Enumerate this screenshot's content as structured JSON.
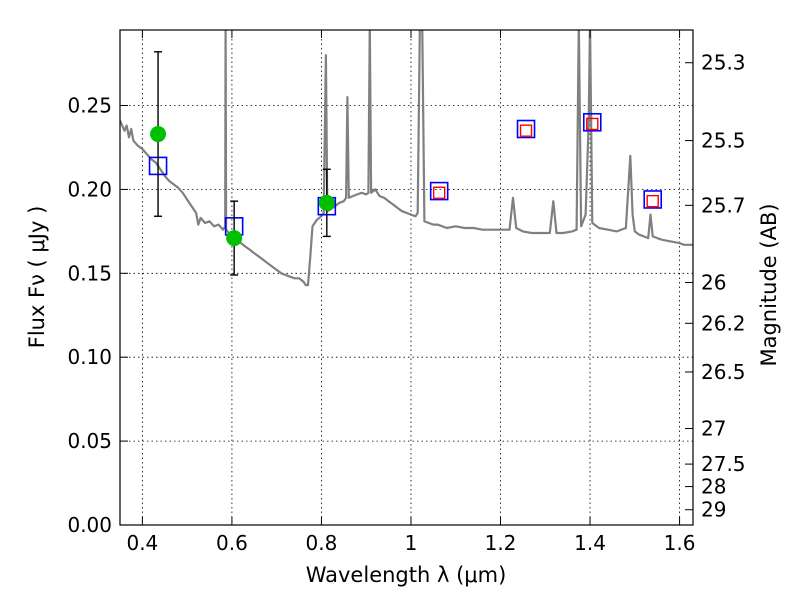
{
  "chart_data": {
    "type": "scatter",
    "xlabel": "Wavelength  λ (μm)",
    "ylabel": "Flux  Fν  ( μJy )",
    "ylabel_right": "Magnitude (AB)",
    "xlim": [
      0.35,
      1.63
    ],
    "ylim": [
      0.0,
      0.295
    ],
    "grid": true,
    "x_ticks": [
      {
        "value": 0.4,
        "label": "0.4"
      },
      {
        "value": 0.6,
        "label": "0.6"
      },
      {
        "value": 0.8,
        "label": "0.8"
      },
      {
        "value": 1.0,
        "label": "1"
      },
      {
        "value": 1.2,
        "label": "1.2"
      },
      {
        "value": 1.4,
        "label": "1.4"
      },
      {
        "value": 1.6,
        "label": "1.6"
      }
    ],
    "y_ticks": [
      {
        "value": 0.0,
        "label": "0.00"
      },
      {
        "value": 0.05,
        "label": "0.05"
      },
      {
        "value": 0.1,
        "label": "0.10"
      },
      {
        "value": 0.15,
        "label": "0.15"
      },
      {
        "value": 0.2,
        "label": "0.20"
      },
      {
        "value": 0.25,
        "label": "0.25"
      }
    ],
    "right_ticks": [
      {
        "label": "25.3",
        "flux": 0.2755
      },
      {
        "label": "25.5",
        "flux": 0.2291
      },
      {
        "label": "25.7",
        "flux": 0.1905
      },
      {
        "label": "26",
        "flux": 0.1445
      },
      {
        "label": "26.2",
        "flux": 0.1202
      },
      {
        "label": "26.5",
        "flux": 0.0912
      },
      {
        "label": "27",
        "flux": 0.0575
      },
      {
        "label": "27.5",
        "flux": 0.0363
      },
      {
        "label": "28",
        "flux": 0.0229
      },
      {
        "label": "29",
        "flux": 0.0091
      }
    ],
    "spectrum": {
      "color": "#808080",
      "points": [
        [
          0.35,
          0.241
        ],
        [
          0.36,
          0.235
        ],
        [
          0.365,
          0.238
        ],
        [
          0.37,
          0.231
        ],
        [
          0.375,
          0.236
        ],
        [
          0.38,
          0.229
        ],
        [
          0.39,
          0.226
        ],
        [
          0.4,
          0.224
        ],
        [
          0.41,
          0.221
        ],
        [
          0.42,
          0.218
        ],
        [
          0.43,
          0.216
        ],
        [
          0.44,
          0.212
        ],
        [
          0.45,
          0.208
        ],
        [
          0.46,
          0.205
        ],
        [
          0.47,
          0.203
        ],
        [
          0.48,
          0.201
        ],
        [
          0.49,
          0.198
        ],
        [
          0.5,
          0.194
        ],
        [
          0.51,
          0.19
        ],
        [
          0.52,
          0.186
        ],
        [
          0.525,
          0.179
        ],
        [
          0.53,
          0.183
        ],
        [
          0.54,
          0.18
        ],
        [
          0.55,
          0.181
        ],
        [
          0.56,
          0.178
        ],
        [
          0.57,
          0.179
        ],
        [
          0.58,
          0.176
        ],
        [
          0.585,
          0.178
        ],
        [
          0.586,
          0.3
        ],
        [
          0.587,
          0.176
        ],
        [
          0.59,
          0.175
        ],
        [
          0.6,
          0.172
        ],
        [
          0.61,
          0.17
        ],
        [
          0.62,
          0.168
        ],
        [
          0.63,
          0.166
        ],
        [
          0.64,
          0.164
        ],
        [
          0.65,
          0.162
        ],
        [
          0.66,
          0.16
        ],
        [
          0.67,
          0.158
        ],
        [
          0.68,
          0.156
        ],
        [
          0.69,
          0.154
        ],
        [
          0.7,
          0.152
        ],
        [
          0.71,
          0.15
        ],
        [
          0.72,
          0.149
        ],
        [
          0.73,
          0.148
        ],
        [
          0.74,
          0.147
        ],
        [
          0.75,
          0.147
        ],
        [
          0.76,
          0.145
        ],
        [
          0.765,
          0.143
        ],
        [
          0.77,
          0.143
        ],
        [
          0.775,
          0.16
        ],
        [
          0.78,
          0.178
        ],
        [
          0.79,
          0.182
        ],
        [
          0.8,
          0.184
        ],
        [
          0.805,
          0.186
        ],
        [
          0.81,
          0.28
        ],
        [
          0.813,
          0.187
        ],
        [
          0.82,
          0.188
        ],
        [
          0.83,
          0.19
        ],
        [
          0.84,
          0.192
        ],
        [
          0.85,
          0.193
        ],
        [
          0.855,
          0.195
        ],
        [
          0.858,
          0.255
        ],
        [
          0.861,
          0.195
        ],
        [
          0.87,
          0.196
        ],
        [
          0.88,
          0.197
        ],
        [
          0.89,
          0.198
        ],
        [
          0.9,
          0.197
        ],
        [
          0.905,
          0.198
        ],
        [
          0.908,
          0.3
        ],
        [
          0.911,
          0.198
        ],
        [
          0.92,
          0.2
        ],
        [
          0.93,
          0.196
        ],
        [
          0.94,
          0.195
        ],
        [
          0.95,
          0.193
        ],
        [
          0.96,
          0.191
        ],
        [
          0.97,
          0.189
        ],
        [
          0.98,
          0.187
        ],
        [
          0.99,
          0.186
        ],
        [
          1.0,
          0.185
        ],
        [
          1.01,
          0.184
        ],
        [
          1.015,
          0.186
        ],
        [
          1.02,
          0.3
        ],
        [
          1.025,
          0.3
        ],
        [
          1.03,
          0.181
        ],
        [
          1.04,
          0.18
        ],
        [
          1.05,
          0.179
        ],
        [
          1.06,
          0.179
        ],
        [
          1.07,
          0.178
        ],
        [
          1.08,
          0.177
        ],
        [
          1.1,
          0.178
        ],
        [
          1.12,
          0.177
        ],
        [
          1.14,
          0.177
        ],
        [
          1.16,
          0.176
        ],
        [
          1.18,
          0.176
        ],
        [
          1.2,
          0.176
        ],
        [
          1.22,
          0.176
        ],
        [
          1.228,
          0.195
        ],
        [
          1.235,
          0.177
        ],
        [
          1.25,
          0.175
        ],
        [
          1.27,
          0.174
        ],
        [
          1.29,
          0.174
        ],
        [
          1.31,
          0.174
        ],
        [
          1.318,
          0.193
        ],
        [
          1.325,
          0.174
        ],
        [
          1.34,
          0.174
        ],
        [
          1.36,
          0.175
        ],
        [
          1.37,
          0.176
        ],
        [
          1.375,
          0.3
        ],
        [
          1.38,
          0.178
        ],
        [
          1.39,
          0.185
        ],
        [
          1.397,
          0.24
        ],
        [
          1.4,
          0.3
        ],
        [
          1.405,
          0.18
        ],
        [
          1.42,
          0.177
        ],
        [
          1.44,
          0.176
        ],
        [
          1.46,
          0.175
        ],
        [
          1.48,
          0.177
        ],
        [
          1.49,
          0.22
        ],
        [
          1.495,
          0.185
        ],
        [
          1.5,
          0.175
        ],
        [
          1.51,
          0.173
        ],
        [
          1.52,
          0.172
        ],
        [
          1.53,
          0.171
        ],
        [
          1.535,
          0.185
        ],
        [
          1.54,
          0.172
        ],
        [
          1.55,
          0.171
        ],
        [
          1.56,
          0.17
        ],
        [
          1.58,
          0.169
        ],
        [
          1.6,
          0.168
        ],
        [
          1.61,
          0.167
        ],
        [
          1.62,
          0.167
        ],
        [
          1.63,
          0.167
        ]
      ]
    },
    "observed_points": {
      "color": "#00c000",
      "points": [
        {
          "x": 0.435,
          "y": 0.233,
          "err_low": 0.184,
          "err_high": 0.282
        },
        {
          "x": 0.605,
          "y": 0.171,
          "err_low": 0.149,
          "err_high": 0.193
        },
        {
          "x": 0.812,
          "y": 0.192,
          "err_low": 0.172,
          "err_high": 0.212
        }
      ]
    },
    "model_blue_squares": {
      "color": "#0000ff",
      "points": [
        {
          "x": 0.435,
          "y": 0.214
        },
        {
          "x": 0.605,
          "y": 0.178
        },
        {
          "x": 0.812,
          "y": 0.19
        },
        {
          "x": 1.063,
          "y": 0.199
        },
        {
          "x": 1.257,
          "y": 0.236
        },
        {
          "x": 1.405,
          "y": 0.24
        },
        {
          "x": 1.54,
          "y": 0.194
        }
      ]
    },
    "model_red_squares": {
      "color": "#ff0000",
      "points": [
        {
          "x": 1.063,
          "y": 0.198
        },
        {
          "x": 1.257,
          "y": 0.235
        },
        {
          "x": 1.405,
          "y": 0.239
        },
        {
          "x": 1.54,
          "y": 0.193
        }
      ]
    }
  }
}
